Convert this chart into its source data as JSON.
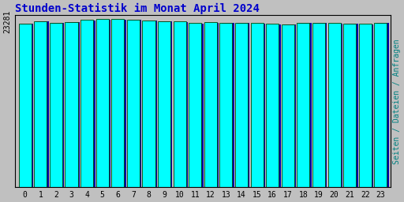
{
  "title": "Stunden-Statistik im Monat April 2024",
  "title_color": "#0000CC",
  "title_fontsize": 10,
  "ylabel": "Seiten / Dateien / Anfragen",
  "ylabel_color": "#008080",
  "ylabel_fontsize": 7,
  "background_color": "#C0C0C0",
  "plot_background_color": "#C0C0C0",
  "bar_face_color": "#00FFFF",
  "bar_edge_color": "#004400",
  "bar_shadow_color": "#0000AA",
  "categories": [
    0,
    1,
    2,
    3,
    4,
    5,
    6,
    7,
    8,
    9,
    10,
    11,
    12,
    13,
    14,
    15,
    16,
    17,
    18,
    19,
    20,
    21,
    22,
    23
  ],
  "values": [
    23050,
    23380,
    23180,
    23300,
    23580,
    23700,
    23660,
    23630,
    23490,
    23410,
    23340,
    23120,
    23220,
    23190,
    23170,
    23090,
    23030,
    22930,
    23160,
    23190,
    23140,
    23040,
    23010,
    23190
  ],
  "ytick_label": "23281",
  "ytick_val": 23281,
  "ytick_label_color": "#000000",
  "ytick_fontsize": 7,
  "xtick_fontsize": 7,
  "ylim_min": 0,
  "ylim_max": 24200,
  "bar_width": 0.82
}
